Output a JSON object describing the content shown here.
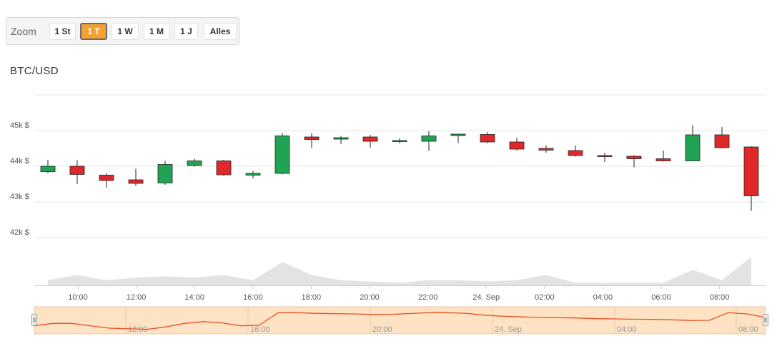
{
  "zoom": {
    "label": "Zoom",
    "buttons": [
      {
        "label": "1 St",
        "active": false
      },
      {
        "label": "1 T",
        "active": true
      },
      {
        "label": "1 W",
        "active": false
      },
      {
        "label": "1 M",
        "active": false
      },
      {
        "label": "1 J",
        "active": false
      },
      {
        "label": "Alles",
        "active": false
      }
    ]
  },
  "chart_data": {
    "type": "candlestick",
    "title": "BTC/USD",
    "ylim": [
      41700,
      46000
    ],
    "y_ticks": [
      {
        "value": 42000,
        "label": "42k $"
      },
      {
        "value": 43000,
        "label": "43k $"
      },
      {
        "value": 44000,
        "label": "44k $"
      },
      {
        "value": 45000,
        "label": "45k $"
      }
    ],
    "x_ticks": [
      "10:00",
      "12:00",
      "14:00",
      "16:00",
      "18:00",
      "20:00",
      "22:00",
      "24. Sep",
      "02:00",
      "04:00",
      "06:00",
      "08:00"
    ],
    "colors": {
      "up": "#21a353",
      "down": "#e0282a",
      "grid": "#e6e6e6",
      "navigator_fill": "#fde2c3",
      "navigator_line": "#e8522a",
      "volume": "#dcdcdc"
    },
    "candles": [
      {
        "open": 43850,
        "high": 44180,
        "low": 43800,
        "close": 44000
      },
      {
        "open": 44000,
        "high": 44170,
        "low": 43500,
        "close": 43770
      },
      {
        "open": 43750,
        "high": 43800,
        "low": 43400,
        "close": 43600
      },
      {
        "open": 43620,
        "high": 43930,
        "low": 43450,
        "close": 43520
      },
      {
        "open": 43530,
        "high": 44150,
        "low": 43480,
        "close": 44050
      },
      {
        "open": 44020,
        "high": 44210,
        "low": 43990,
        "close": 44150
      },
      {
        "open": 44150,
        "high": 44180,
        "low": 43730,
        "close": 43760
      },
      {
        "open": 43750,
        "high": 43870,
        "low": 43660,
        "close": 43800
      },
      {
        "open": 43800,
        "high": 44930,
        "low": 43770,
        "close": 44850
      },
      {
        "open": 44820,
        "high": 44930,
        "low": 44520,
        "close": 44750
      },
      {
        "open": 44760,
        "high": 44850,
        "low": 44620,
        "close": 44800
      },
      {
        "open": 44820,
        "high": 44880,
        "low": 44520,
        "close": 44700
      },
      {
        "open": 44700,
        "high": 44780,
        "low": 44640,
        "close": 44720
      },
      {
        "open": 44700,
        "high": 44980,
        "low": 44430,
        "close": 44850
      },
      {
        "open": 44860,
        "high": 44900,
        "low": 44650,
        "close": 44900
      },
      {
        "open": 44890,
        "high": 44960,
        "low": 44640,
        "close": 44680
      },
      {
        "open": 44680,
        "high": 44800,
        "low": 44440,
        "close": 44480
      },
      {
        "open": 44500,
        "high": 44580,
        "low": 44380,
        "close": 44450
      },
      {
        "open": 44440,
        "high": 44580,
        "low": 44270,
        "close": 44300
      },
      {
        "open": 44300,
        "high": 44370,
        "low": 44120,
        "close": 44280
      },
      {
        "open": 44280,
        "high": 44310,
        "low": 43970,
        "close": 44210
      },
      {
        "open": 44210,
        "high": 44440,
        "low": 44130,
        "close": 44150
      },
      {
        "open": 44150,
        "high": 45150,
        "low": 44140,
        "close": 44880
      },
      {
        "open": 44880,
        "high": 45100,
        "low": 44500,
        "close": 44520
      },
      {
        "open": 44540,
        "high": 44560,
        "low": 42750,
        "close": 43170
      }
    ],
    "volume": [
      2,
      4,
      2,
      3,
      3.5,
      3,
      4,
      2,
      9,
      4,
      2,
      1.5,
      1,
      2,
      2,
      1.5,
      2,
      4,
      1,
      1,
      1,
      1,
      6,
      2,
      11
    ],
    "navigator": {
      "x_ticks": [
        "12:00",
        "16:00",
        "20:00",
        "24. Sep",
        "04:00",
        "08:00"
      ],
      "values": [
        43800,
        44000,
        44000,
        43800,
        43600,
        43550,
        43500,
        43700,
        44000,
        44150,
        44050,
        43800,
        43850,
        44900,
        44900,
        44850,
        44820,
        44800,
        44750,
        44760,
        44830,
        44900,
        44900,
        44850,
        44700,
        44600,
        44550,
        44500,
        44480,
        44450,
        44400,
        44380,
        44350,
        44340,
        44300,
        44250,
        44260,
        44900,
        44800,
        44500
      ]
    }
  }
}
